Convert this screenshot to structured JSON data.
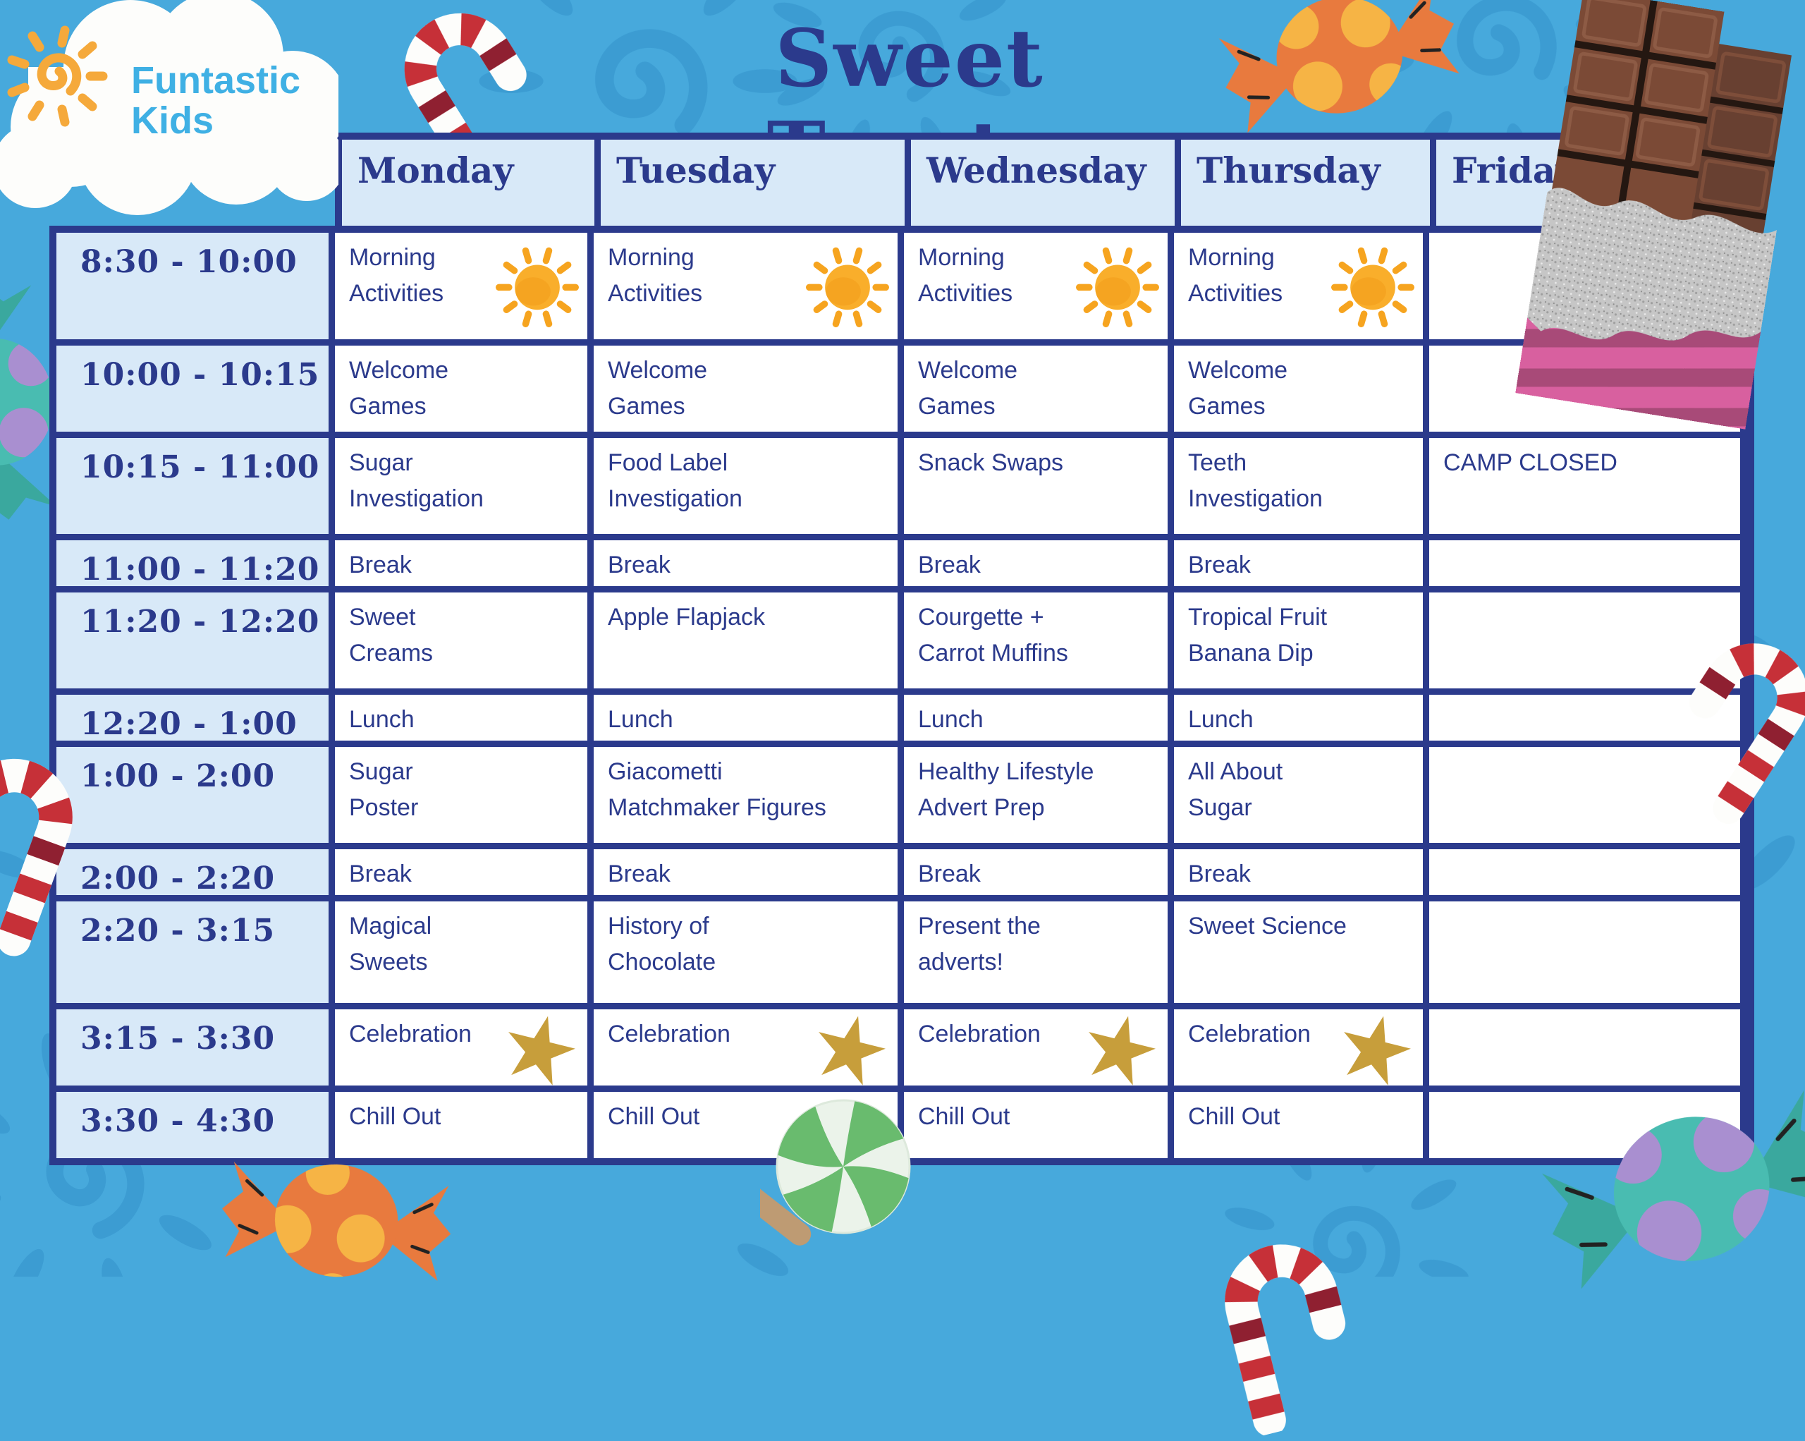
{
  "meta": {
    "title": "Sweet Treats"
  },
  "logo": {
    "line1": "Funtastic",
    "line2": "Kids"
  },
  "schedule": {
    "days": [
      "Monday",
      "Tuesday",
      "Wednesday",
      "Thursday",
      "Friday"
    ],
    "rows": [
      {
        "time": "8:30 - 10:00",
        "cells": [
          {
            "text": "Morning\nActivities",
            "icon": "sun"
          },
          {
            "text": "Morning\nActivities",
            "icon": "sun"
          },
          {
            "text": "Morning\nActivities",
            "icon": "sun"
          },
          {
            "text": "Morning\nActivities",
            "icon": "sun"
          },
          {
            "text": ""
          }
        ]
      },
      {
        "time": "10:00 - 10:15",
        "cells": [
          {
            "text": "Welcome\nGames"
          },
          {
            "text": "Welcome\nGames"
          },
          {
            "text": "Welcome\nGames"
          },
          {
            "text": "Welcome\nGames"
          },
          {
            "text": ""
          }
        ]
      },
      {
        "time": "10:15 - 11:00",
        "cells": [
          {
            "text": "Sugar\nInvestigation"
          },
          {
            "text": "Food Label\nInvestigation"
          },
          {
            "text": "Snack Swaps"
          },
          {
            "text": "Teeth\nInvestigation"
          },
          {
            "text": "CAMP CLOSED"
          }
        ]
      },
      {
        "time": "11:00 - 11:20",
        "cells": [
          {
            "text": "Break"
          },
          {
            "text": "Break"
          },
          {
            "text": "Break"
          },
          {
            "text": "Break"
          },
          {
            "text": ""
          }
        ]
      },
      {
        "time": "11:20 - 12:20",
        "cells": [
          {
            "text": "Sweet\nCreams"
          },
          {
            "text": "Apple Flapjack"
          },
          {
            "text": "Courgette +\nCarrot Muffins"
          },
          {
            "text": "Tropical Fruit\nBanana Dip"
          },
          {
            "text": ""
          }
        ]
      },
      {
        "time": "12:20 - 1:00",
        "cells": [
          {
            "text": "Lunch"
          },
          {
            "text": "Lunch"
          },
          {
            "text": "Lunch"
          },
          {
            "text": "Lunch"
          },
          {
            "text": ""
          }
        ]
      },
      {
        "time": "1:00 - 2:00",
        "cells": [
          {
            "text": "Sugar\nPoster"
          },
          {
            "text": "Giacometti\nMatchmaker Figures"
          },
          {
            "text": "Healthy Lifestyle\nAdvert Prep"
          },
          {
            "text": "All About\nSugar"
          },
          {
            "text": ""
          }
        ]
      },
      {
        "time": "2:00 - 2:20",
        "cells": [
          {
            "text": "Break"
          },
          {
            "text": "Break"
          },
          {
            "text": "Break"
          },
          {
            "text": "Break"
          },
          {
            "text": ""
          }
        ]
      },
      {
        "time": "2:20 - 3:15",
        "cells": [
          {
            "text": "Magical\nSweets"
          },
          {
            "text": "History of\nChocolate"
          },
          {
            "text": "Present the\nadverts!"
          },
          {
            "text": "Sweet Science"
          },
          {
            "text": ""
          }
        ]
      },
      {
        "time": "3:15 - 3:30",
        "cells": [
          {
            "text": "Celebration",
            "icon": "star"
          },
          {
            "text": "Celebration",
            "icon": "star"
          },
          {
            "text": "Celebration",
            "icon": "star"
          },
          {
            "text": "Celebration",
            "icon": "star"
          },
          {
            "text": ""
          }
        ]
      },
      {
        "time": "3:30 - 4:30",
        "cells": [
          {
            "text": "Chill Out"
          },
          {
            "text": "Chill Out"
          },
          {
            "text": "Chill Out"
          },
          {
            "text": "Chill Out"
          },
          {
            "text": ""
          }
        ]
      }
    ]
  },
  "icons": {
    "sun": "sun-icon",
    "star": "star-icon"
  },
  "colors": {
    "background": "#47A9DC",
    "doodle_blue": "#3B9BD1",
    "table_navy": "#2B3A8C",
    "header_fill": "#D8E9F8",
    "cell_fill": "#FFFFFF",
    "logo_blue": "#3FB0E4",
    "sun_orange": "#F6A41F",
    "star_gold": "#C79E3B",
    "cane_red": "#C63038",
    "chocolate_brown": "#7B4A36",
    "foil_silver": "#C6C6C6",
    "wrapper_pink": "#D8609F",
    "candy_teal": "#49BCB1",
    "candy_dot_purple": "#A98FD0",
    "candy_orange": "#E87A3E",
    "candy_dot_yellow": "#F6B445",
    "lollipop_green": "#69BB6E",
    "lollipop_stick": "#BE9B73",
    "cloud_white": "#FDFDFB"
  }
}
